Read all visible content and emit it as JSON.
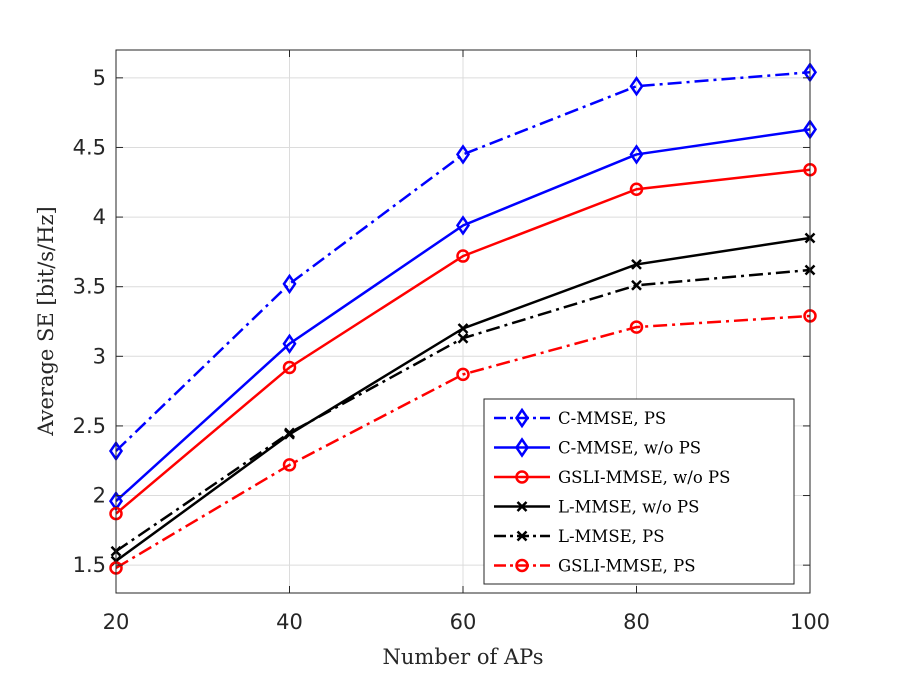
{
  "chart_data": {
    "type": "line",
    "title": "",
    "xlabel": "Number of APs",
    "ylabel": "Average SE [bit/s/Hz]",
    "x": [
      20,
      40,
      60,
      80,
      100
    ],
    "xlim": [
      20,
      100
    ],
    "ylim": [
      1.3,
      5.2
    ],
    "xticks": [
      20,
      40,
      60,
      80,
      100
    ],
    "xtick_labels": [
      "20",
      "40",
      "60",
      "80",
      "100"
    ],
    "yticks": [
      1.5,
      2,
      2.5,
      3,
      3.5,
      4,
      4.5,
      5
    ],
    "ytick_labels": [
      "1.5",
      "2",
      "2.5",
      "3",
      "3.5",
      "4",
      "4.5",
      "5"
    ],
    "grid": true,
    "legend_position": "bottom-right",
    "series": [
      {
        "name": "C-MMSE, PS",
        "values": [
          2.32,
          3.52,
          4.45,
          4.94,
          5.04
        ],
        "color": "#0000ff",
        "line": "dashdot",
        "marker": "diamond"
      },
      {
        "name": "C-MMSE, w/o PS",
        "values": [
          1.96,
          3.09,
          3.94,
          4.45,
          4.63
        ],
        "color": "#0000ff",
        "line": "solid",
        "marker": "diamond"
      },
      {
        "name": "GSLI-MMSE, w/o PS",
        "values": [
          1.87,
          2.92,
          3.72,
          4.2,
          4.34
        ],
        "color": "#ff0000",
        "line": "solid",
        "marker": "circle"
      },
      {
        "name": "L-MMSE, w/o PS",
        "values": [
          1.53,
          2.44,
          3.2,
          3.66,
          3.85
        ],
        "color": "#000000",
        "line": "solid",
        "marker": "x"
      },
      {
        "name": "L-MMSE, PS",
        "values": [
          1.6,
          2.45,
          3.13,
          3.51,
          3.62
        ],
        "color": "#000000",
        "line": "dashdot",
        "marker": "x"
      },
      {
        "name": "GSLI-MMSE, PS",
        "values": [
          1.48,
          2.22,
          2.87,
          3.21,
          3.29
        ],
        "color": "#ff0000",
        "line": "dashdot",
        "marker": "circle"
      }
    ]
  }
}
